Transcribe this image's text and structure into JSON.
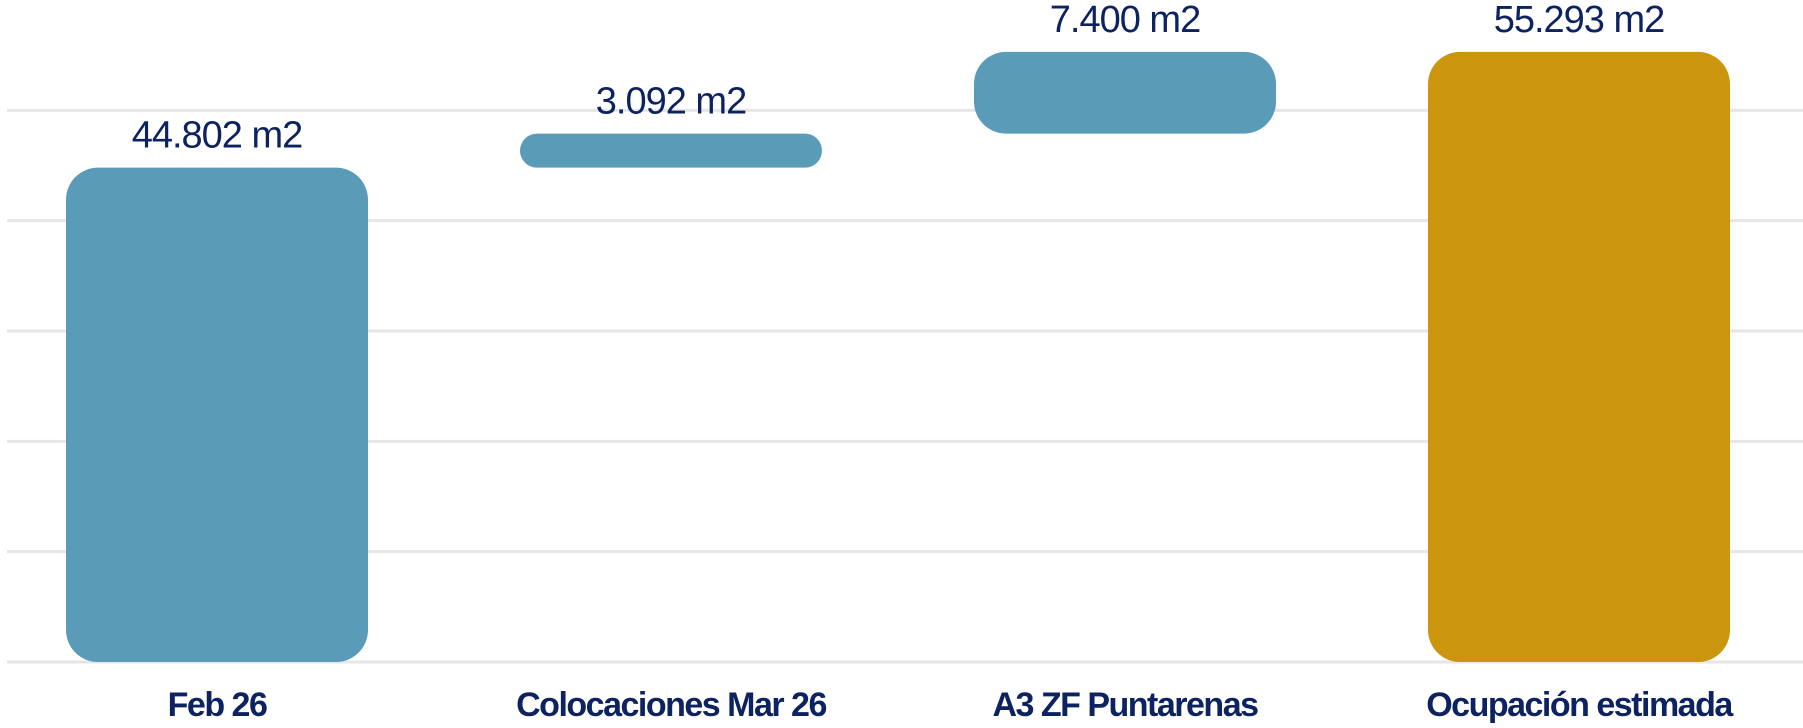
{
  "chart_data": {
    "type": "waterfall",
    "categories": [
      "Feb 26",
      "Colocaciones Mar 26",
      "A3 ZF Puntarenas",
      "Ocupación estimada"
    ],
    "values": [
      44802,
      3092,
      7400,
      55293
    ],
    "value_labels": [
      "44.802 m2",
      "3.092 m2",
      "7.400 m2",
      "55.293 m2"
    ],
    "from_zero": [
      true,
      false,
      false,
      true
    ],
    "colors": [
      "#5a9bb8",
      "#5a9bb8",
      "#5a9bb8",
      "#cc950e"
    ],
    "ylim": [
      0,
      60000
    ],
    "yticks": [
      0,
      10000,
      20000,
      30000,
      40000,
      50000
    ],
    "grid": true
  }
}
